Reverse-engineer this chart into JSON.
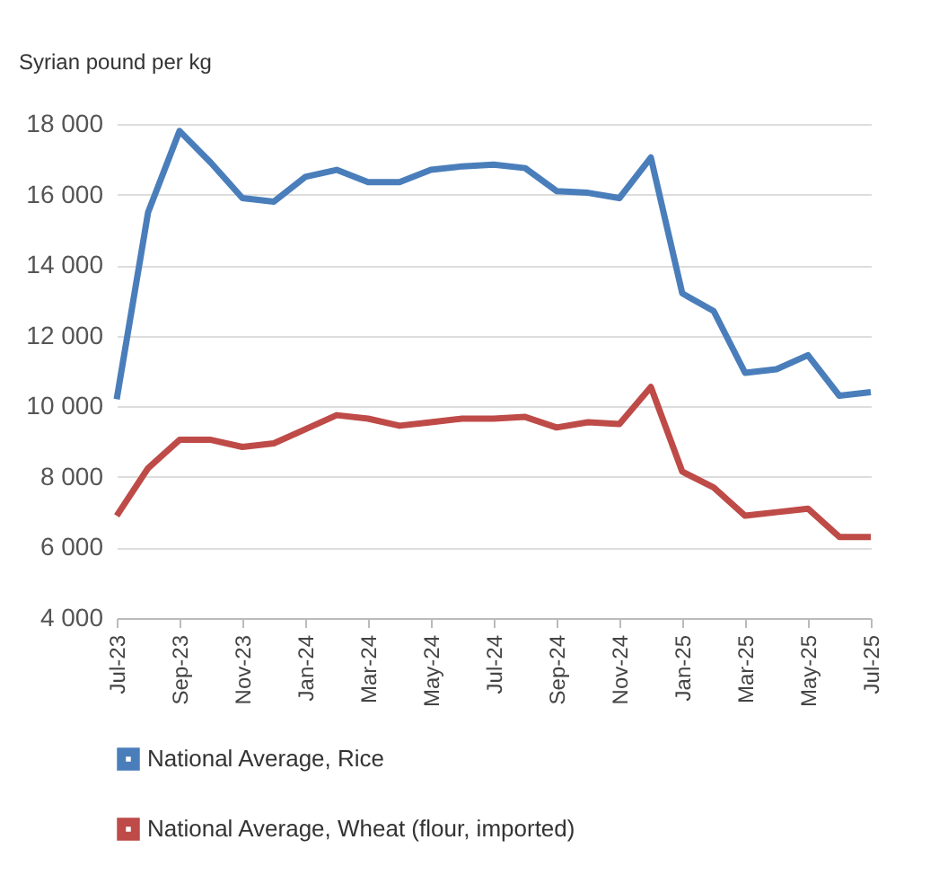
{
  "chart_data": {
    "type": "line",
    "ylabel": "Syrian pound per kg",
    "categories": [
      "Jul-23",
      null,
      "Sep-23",
      null,
      "Nov-23",
      null,
      "Jan-24",
      null,
      "Mar-24",
      null,
      "May-24",
      null,
      "Jul-24",
      null,
      "Sep-24",
      null,
      "Nov-24",
      null,
      "Jan-25",
      null,
      "Mar-25",
      null,
      "May-25",
      null,
      "Jul-25"
    ],
    "series": [
      {
        "name": "National Average, Rice",
        "color": "#4a7ebb",
        "values": [
          10200,
          15500,
          17800,
          16900,
          15900,
          15800,
          16500,
          16700,
          16350,
          16350,
          16700,
          16800,
          16850,
          16750,
          16100,
          16050,
          15900,
          17050,
          13200,
          12700,
          10950,
          11050,
          11450,
          10300,
          10400
        ]
      },
      {
        "name": "National Average, Wheat (flour, imported)",
        "color": "#be4b48",
        "values": [
          6900,
          8250,
          9050,
          9050,
          8850,
          8950,
          9350,
          9750,
          9650,
          9450,
          9550,
          9650,
          9650,
          9700,
          9400,
          9550,
          9500,
          10550,
          8150,
          7700,
          6900,
          7000,
          7100,
          6300,
          6300
        ]
      }
    ],
    "ylim": [
      4000,
      18000
    ],
    "yticks": [
      {
        "value": 4000,
        "label": "4 000"
      },
      {
        "value": 6000,
        "label": "6 000"
      },
      {
        "value": 8000,
        "label": "8 000"
      },
      {
        "value": 10000,
        "label": "10 000"
      },
      {
        "value": 12000,
        "label": "12 000"
      },
      {
        "value": 14000,
        "label": "14 000"
      },
      {
        "value": 16000,
        "label": "16 000"
      },
      {
        "value": 18000,
        "label": "18 000"
      }
    ],
    "grid": "y",
    "legend": "bottom",
    "marker": "none",
    "line_style": "solid"
  }
}
